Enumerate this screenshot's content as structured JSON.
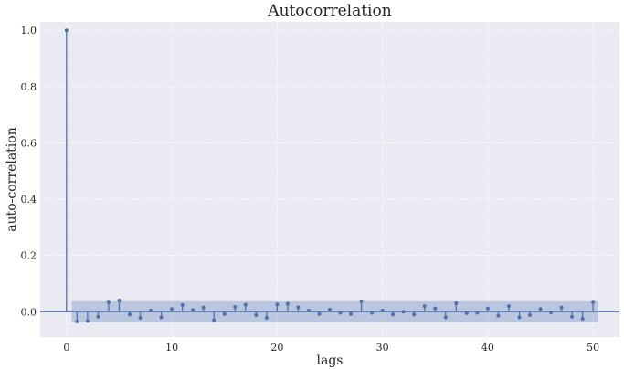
{
  "chart_data": {
    "type": "stem",
    "title": "Autocorrelation",
    "xlabel": "lags",
    "ylabel": "auto-correlation",
    "xlim": [
      -2.5,
      52.5
    ],
    "ylim": [
      -0.09,
      1.03
    ],
    "xticks": [
      0,
      10,
      20,
      30,
      40,
      50
    ],
    "yticks": [
      0.0,
      0.2,
      0.4,
      0.6,
      0.8,
      1.0
    ],
    "xtick_labels": [
      "0",
      "10",
      "20",
      "30",
      "40",
      "50"
    ],
    "ytick_labels": [
      "0.0",
      "0.2",
      "0.4",
      "0.6",
      "0.8",
      "1.0"
    ],
    "grid": true,
    "baseline": 0,
    "confidence_band": {
      "x_range": [
        0.5,
        50.5
      ],
      "lower": -0.037,
      "upper": 0.037
    },
    "lags": [
      0,
      1,
      2,
      3,
      4,
      5,
      6,
      7,
      8,
      9,
      10,
      11,
      12,
      13,
      14,
      15,
      16,
      17,
      18,
      19,
      20,
      21,
      22,
      23,
      24,
      25,
      26,
      27,
      28,
      29,
      30,
      31,
      32,
      33,
      34,
      35,
      36,
      37,
      38,
      39,
      40,
      41,
      42,
      43,
      44,
      45,
      46,
      47,
      48,
      49,
      50
    ],
    "values": [
      1.0,
      -0.035,
      -0.033,
      -0.018,
      0.033,
      0.04,
      -0.01,
      -0.022,
      0.004,
      -0.02,
      0.01,
      0.024,
      0.006,
      0.015,
      -0.03,
      -0.008,
      0.017,
      0.025,
      -0.012,
      -0.022,
      0.026,
      0.028,
      0.016,
      0.004,
      -0.008,
      0.008,
      -0.004,
      -0.008,
      0.037,
      -0.004,
      0.004,
      -0.01,
      0.0,
      -0.01,
      0.02,
      0.012,
      -0.02,
      0.03,
      -0.005,
      -0.004,
      0.012,
      -0.014,
      0.02,
      -0.02,
      -0.012,
      0.01,
      -0.003,
      0.015,
      -0.018,
      -0.025,
      0.033
    ],
    "colors": {
      "background": "#eaeaf2",
      "grid": "#ffffff",
      "stem": "#4c72b0",
      "band": "#4c72b0",
      "baseline": "#4c72b0"
    }
  }
}
